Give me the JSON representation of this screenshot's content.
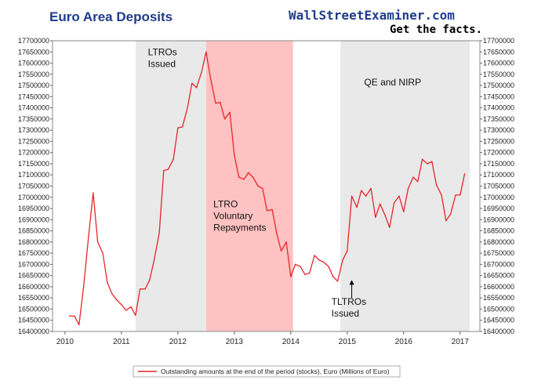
{
  "header": {
    "title": "Euro Area Deposits",
    "brand": "WallStreetExaminer.com",
    "tagline": "Get the facts."
  },
  "colors": {
    "title": "#1f3c8c",
    "brand": "#1f3c8c",
    "line": "#e8252a",
    "shade_gray": "#e9e9e9",
    "shade_red": "#ffc2c2"
  },
  "chart_data": {
    "type": "line",
    "title": "Euro Area Deposits",
    "xlabel": "",
    "ylabel": "",
    "xlim": [
      2009.78,
      2017.35
    ],
    "ylim": [
      16400000,
      17700000
    ],
    "x_ticks": [
      2010,
      2011,
      2012,
      2013,
      2014,
      2015,
      2016,
      2017
    ],
    "y_ticks": [
      16400000,
      16450000,
      16500000,
      16550000,
      16600000,
      16650000,
      16700000,
      16750000,
      16800000,
      16850000,
      16900000,
      16950000,
      17000000,
      17050000,
      17100000,
      17150000,
      17200000,
      17250000,
      17300000,
      17350000,
      17400000,
      17450000,
      17500000,
      17550000,
      17600000,
      17650000,
      17700000
    ],
    "grid": false,
    "legend_position": "bottom",
    "series": [
      {
        "name": "Outstanding amounts at the end of the period (stocks), Euro (Millions of Euro)",
        "x": [
          2010.08,
          2010.17,
          2010.25,
          2010.33,
          2010.42,
          2010.5,
          2010.58,
          2010.67,
          2010.75,
          2010.83,
          2010.92,
          2011.0,
          2011.08,
          2011.17,
          2011.25,
          2011.33,
          2011.42,
          2011.5,
          2011.58,
          2011.67,
          2011.75,
          2011.83,
          2011.92,
          2012.0,
          2012.08,
          2012.17,
          2012.25,
          2012.33,
          2012.42,
          2012.5,
          2012.58,
          2012.67,
          2012.75,
          2012.83,
          2012.92,
          2013.0,
          2013.08,
          2013.17,
          2013.25,
          2013.33,
          2013.42,
          2013.5,
          2013.58,
          2013.67,
          2013.75,
          2013.83,
          2013.92,
          2014.0,
          2014.08,
          2014.17,
          2014.25,
          2014.33,
          2014.42,
          2014.5,
          2014.58,
          2014.67,
          2014.75,
          2014.83,
          2014.92,
          2015.0,
          2015.08,
          2015.17,
          2015.25,
          2015.33,
          2015.42,
          2015.5,
          2015.58,
          2015.67,
          2015.75,
          2015.83,
          2015.92,
          2016.0,
          2016.08,
          2016.17,
          2016.25,
          2016.33,
          2016.42,
          2016.5,
          2016.58,
          2016.67,
          2016.75,
          2016.83,
          2016.92,
          2017.0,
          2017.08
        ],
        "values": [
          16470000,
          16468000,
          16430000,
          16600000,
          16830000,
          17020000,
          16800000,
          16750000,
          16620000,
          16570000,
          16540000,
          16520000,
          16495000,
          16510000,
          16472000,
          16590000,
          16590000,
          16630000,
          16720000,
          16840000,
          17120000,
          17125000,
          17170000,
          17310000,
          17315000,
          17400000,
          17510000,
          17490000,
          17560000,
          17650000,
          17530000,
          17420000,
          17425000,
          17350000,
          17380000,
          17190000,
          17090000,
          17080000,
          17110000,
          17090000,
          17050000,
          17040000,
          16940000,
          16945000,
          16840000,
          16760000,
          16800000,
          16645000,
          16700000,
          16690000,
          16655000,
          16660000,
          16740000,
          16720000,
          16710000,
          16690000,
          16645000,
          16625000,
          16720000,
          16760000,
          17005000,
          16955000,
          17030000,
          17005000,
          17040000,
          16910000,
          16970000,
          16920000,
          16865000,
          16975000,
          17005000,
          16935000,
          17040000,
          17090000,
          17070000,
          17170000,
          17150000,
          17160000,
          17055000,
          17010000,
          16895000,
          16925000,
          17010000,
          17010000,
          17105000
        ]
      }
    ],
    "shaded_regions": [
      {
        "from": 2011.25,
        "to": 2012.5,
        "color": "gray"
      },
      {
        "from": 2012.5,
        "to": 2014.04,
        "color": "red"
      },
      {
        "from": 2014.88,
        "to": 2017.17,
        "color": "gray"
      }
    ],
    "annotations": [
      {
        "lines": [
          "LTROs",
          "Issued"
        ],
        "x": 2011.47,
        "y": 17635000
      },
      {
        "lines": [
          "LTRO",
          "Voluntary",
          "Repayments"
        ],
        "x": 2012.63,
        "y": 16955000
      },
      {
        "lines": [
          "QE and NIRP"
        ],
        "x": 2015.3,
        "y": 17500000
      },
      {
        "lines": [
          "TLTROs",
          "Issued"
        ],
        "x": 2014.72,
        "y": 16520000
      }
    ],
    "arrow": {
      "x": 2015.08,
      "from_y": 16550000,
      "to_y": 16630000
    }
  }
}
